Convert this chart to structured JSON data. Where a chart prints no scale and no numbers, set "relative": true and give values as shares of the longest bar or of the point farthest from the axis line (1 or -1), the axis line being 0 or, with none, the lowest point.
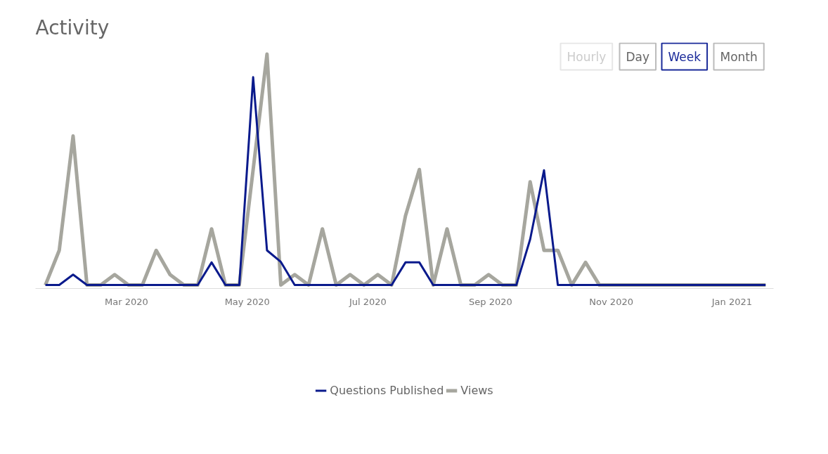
{
  "chart_data": {
    "type": "line",
    "title": "Activity",
    "relative": true,
    "x": [
      "2020-01-20",
      "2020-01-27",
      "2020-02-03",
      "2020-02-10",
      "2020-02-17",
      "2020-02-24",
      "2020-03-02",
      "2020-03-09",
      "2020-03-16",
      "2020-03-23",
      "2020-03-30",
      "2020-04-06",
      "2020-04-13",
      "2020-04-20",
      "2020-04-27",
      "2020-05-04",
      "2020-05-11",
      "2020-05-18",
      "2020-05-25",
      "2020-06-01",
      "2020-06-08",
      "2020-06-15",
      "2020-06-22",
      "2020-06-29",
      "2020-07-06",
      "2020-07-13",
      "2020-07-20",
      "2020-07-27",
      "2020-08-03",
      "2020-08-10",
      "2020-08-17",
      "2020-08-24",
      "2020-08-31",
      "2020-09-07",
      "2020-09-14",
      "2020-09-21",
      "2020-09-28",
      "2020-10-05",
      "2020-10-12",
      "2020-10-19",
      "2020-10-26",
      "2020-11-02",
      "2020-11-09",
      "2020-11-16",
      "2020-11-23",
      "2020-11-30",
      "2020-12-07",
      "2020-12-14",
      "2020-12-21",
      "2020-12-28",
      "2021-01-04",
      "2021-01-11",
      "2021-01-18"
    ],
    "xlim": [
      "2020-01-15",
      "2021-01-22"
    ],
    "xticks": [
      {
        "value": "2020-03-01",
        "label": "Mar 2020"
      },
      {
        "value": "2020-05-01",
        "label": "May 2020"
      },
      {
        "value": "2020-07-01",
        "label": "Jul 2020"
      },
      {
        "value": "2020-09-01",
        "label": "Sep 2020"
      },
      {
        "value": "2020-11-01",
        "label": "Nov 2020"
      },
      {
        "value": "2021-01-01",
        "label": "Jan 2021"
      }
    ],
    "series": [
      {
        "name": "Questions Published",
        "color": "#0a1a8c",
        "values": [
          0,
          0,
          0.045,
          0,
          0,
          0,
          0,
          0,
          0,
          0,
          0,
          0,
          0.098,
          0,
          0,
          0.9,
          0.15,
          0.1,
          0,
          0,
          0,
          0,
          0,
          0,
          0,
          0,
          0.098,
          0.098,
          0,
          0,
          0,
          0,
          0,
          0,
          0,
          0.198,
          0.497,
          0,
          0,
          0,
          0,
          0,
          0,
          0,
          0,
          0,
          0,
          0,
          0,
          0,
          0,
          0,
          0
        ]
      },
      {
        "name": "Views",
        "color": "#a6a69e",
        "values": [
          0,
          0.15,
          0.645,
          0,
          0,
          0.045,
          0,
          0,
          0.15,
          0.045,
          0,
          0,
          0.243,
          0,
          0,
          0.5,
          1,
          0,
          0.045,
          0,
          0.243,
          0,
          0.045,
          0,
          0.045,
          0,
          0.3,
          0.5,
          0,
          0.243,
          0,
          0,
          0.045,
          0,
          0,
          0.447,
          0.15,
          0.15,
          0,
          0.098,
          0,
          0,
          0,
          0,
          0,
          0,
          0,
          0,
          0,
          0,
          0,
          0,
          0
        ]
      }
    ],
    "annotations": [
      "Hourly",
      "Day",
      "Week",
      "Month"
    ],
    "legend": "bottom",
    "grid": false,
    "marker": "none",
    "line_style": "solid"
  }
}
